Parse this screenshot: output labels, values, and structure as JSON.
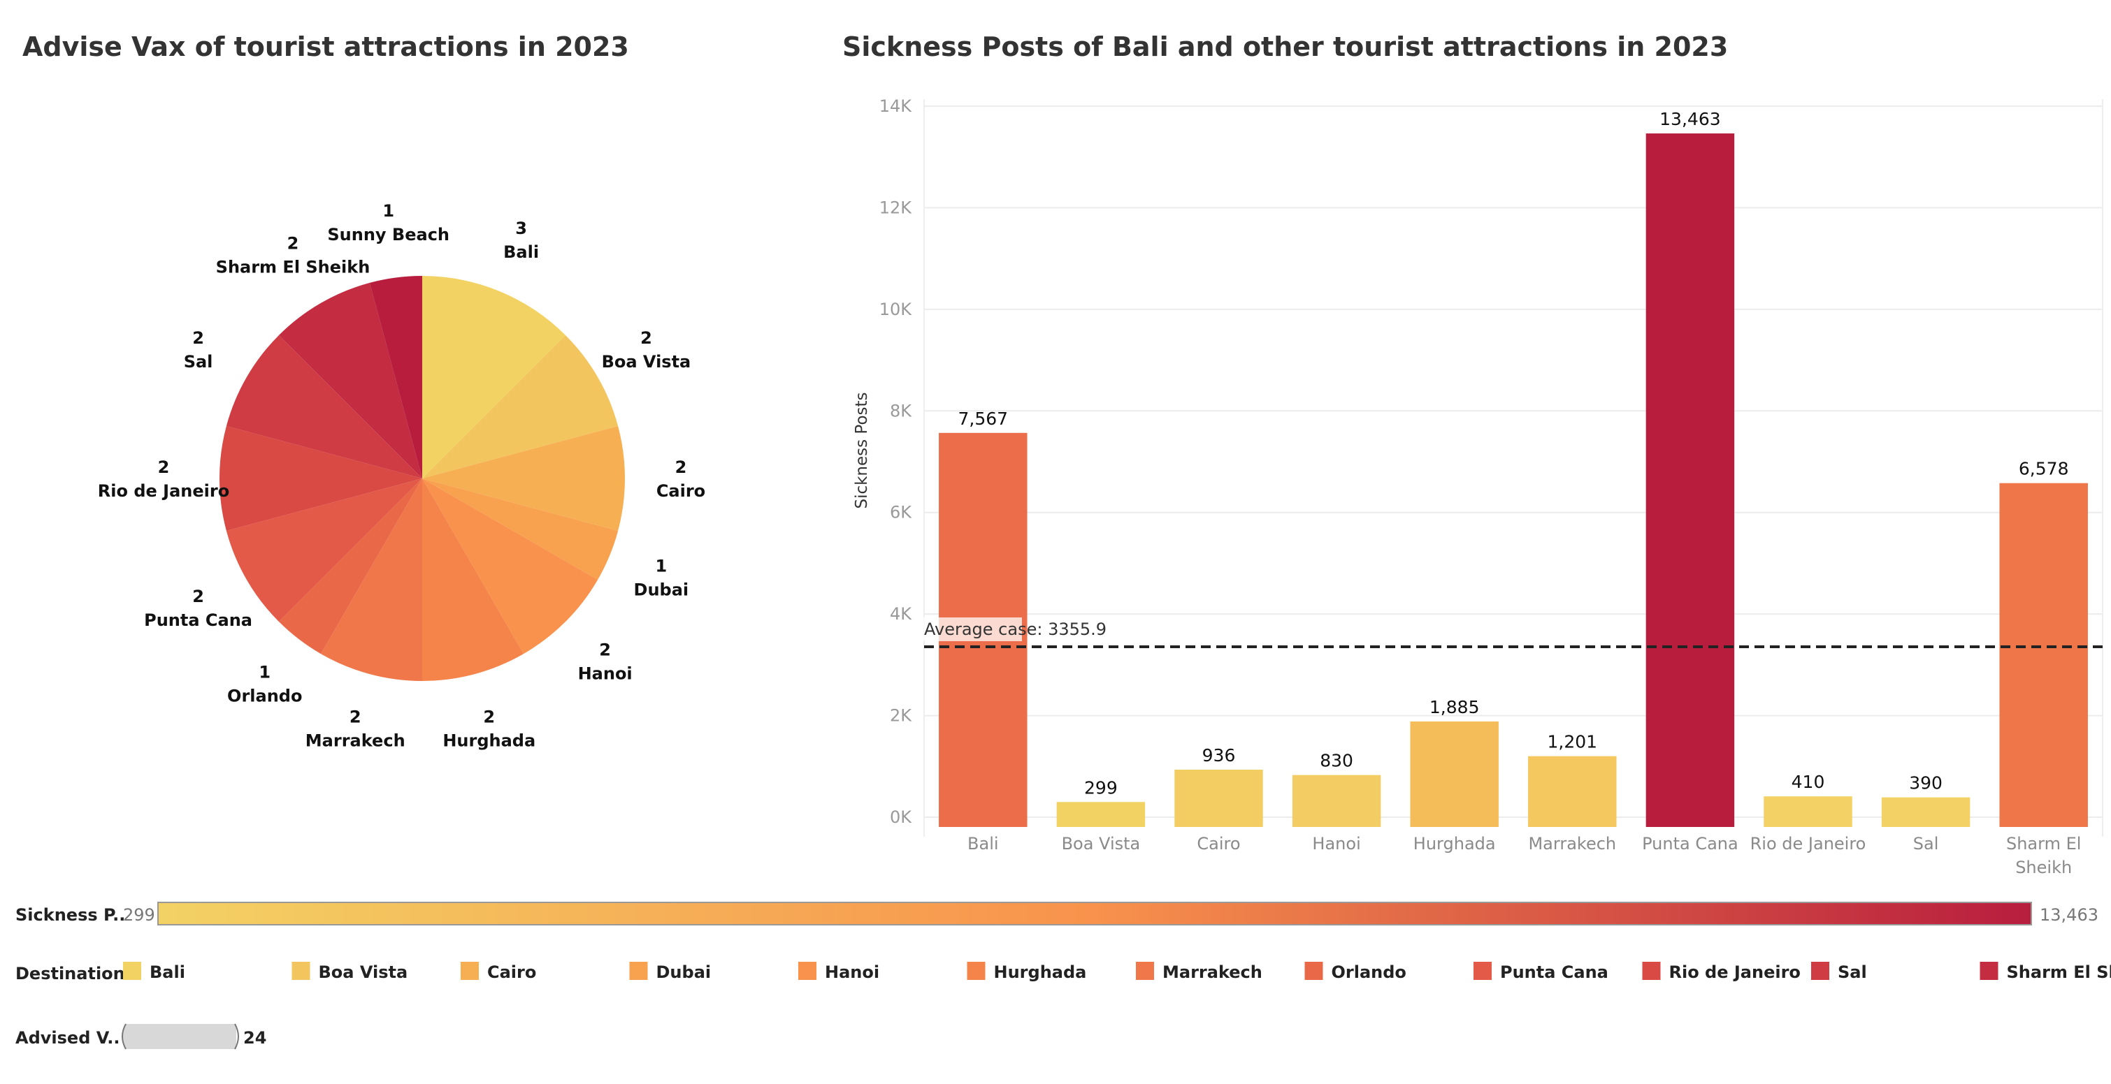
{
  "chart_data": [
    {
      "type": "pie",
      "title": "Advise Vax of tourist attractions in 2023",
      "slices": [
        {
          "label": "Bali",
          "value": 3,
          "color": "#F3D264"
        },
        {
          "label": "Boa Vista",
          "value": 2,
          "color": "#F3C55E"
        },
        {
          "label": "Cairo",
          "value": 2,
          "color": "#F7AF53"
        },
        {
          "label": "Dubai",
          "value": 1,
          "color": "#F8A24F"
        },
        {
          "label": "Hanoi",
          "value": 2,
          "color": "#F8924C"
        },
        {
          "label": "Hurghada",
          "value": 2,
          "color": "#F5844A"
        },
        {
          "label": "Marrakech",
          "value": 2,
          "color": "#F07749"
        },
        {
          "label": "Orlando",
          "value": 1,
          "color": "#E96848"
        },
        {
          "label": "Punta Cana",
          "value": 2,
          "color": "#E35B48"
        },
        {
          "label": "Rio de Janeiro",
          "value": 2,
          "color": "#D94A45"
        },
        {
          "label": "Sal",
          "value": 2,
          "color": "#CF3C44"
        },
        {
          "label": "Sharm El Sheikh",
          "value": 2,
          "color": "#C32C41"
        },
        {
          "label": "Sunny Beach",
          "value": 1,
          "color": "#B81D3E"
        }
      ]
    },
    {
      "type": "bar",
      "title": "Sickness Posts of Bali and other tourist attractions in 2023",
      "ylabel": "Sickness Posts",
      "ylim": [
        0,
        14000
      ],
      "yticks": [
        {
          "value": 0,
          "label": "0K"
        },
        {
          "value": 2000,
          "label": "2K"
        },
        {
          "value": 4000,
          "label": "4K"
        },
        {
          "value": 6000,
          "label": "6K"
        },
        {
          "value": 8000,
          "label": "8K"
        },
        {
          "value": 10000,
          "label": "10K"
        },
        {
          "value": 12000,
          "label": "12K"
        },
        {
          "value": 14000,
          "label": "14K"
        }
      ],
      "bars": [
        {
          "category": "Bali",
          "value": 7567,
          "label": "7,567",
          "color": "#EB6D4A"
        },
        {
          "category": "Boa Vista",
          "value": 299,
          "label": "299",
          "color": "#F3D264"
        },
        {
          "category": "Cairo",
          "value": 936,
          "label": "936",
          "color": "#F3CC62"
        },
        {
          "category": "Hanoi",
          "value": 830,
          "label": "830",
          "color": "#F3CD63"
        },
        {
          "category": "Hurghada",
          "value": 1885,
          "label": "1,885",
          "color": "#F5BC5A"
        },
        {
          "category": "Marrakech",
          "value": 1201,
          "label": "1,201",
          "color": "#F4C75F"
        },
        {
          "category": "Punta Cana",
          "value": 13463,
          "label": "13,463",
          "color": "#B81D3E"
        },
        {
          "category": "Rio de Janeiro",
          "value": 410,
          "label": "410",
          "color": "#F3D164"
        },
        {
          "category": "Sal",
          "value": 390,
          "label": "390",
          "color": "#F3D164"
        },
        {
          "category": "Sharm El\nSheikh",
          "value": 6578,
          "label": "6,578",
          "color": "#EE7649"
        }
      ],
      "reference_line": {
        "value": 3355.9,
        "label": "Average case: 3355.9"
      }
    }
  ],
  "legends": {
    "color_scale": {
      "title": "Sickness P..",
      "min_label": "299",
      "max_label": "13,463",
      "min_color": "#F3D264",
      "mid_color": "#F8924C",
      "max_color": "#B81D3E"
    },
    "destination": {
      "title": "Destination",
      "items": [
        {
          "label": "Bali",
          "color": "#F3D264"
        },
        {
          "label": "Boa Vista",
          "color": "#F3C55E"
        },
        {
          "label": "Cairo",
          "color": "#F7AF53"
        },
        {
          "label": "Dubai",
          "color": "#F8A24F"
        },
        {
          "label": "Hanoi",
          "color": "#F8924C"
        },
        {
          "label": "Hurghada",
          "color": "#F5844A"
        },
        {
          "label": "Marrakech",
          "color": "#F07749"
        },
        {
          "label": "Orlando",
          "color": "#E96848"
        },
        {
          "label": "Punta Cana",
          "color": "#E35B48"
        },
        {
          "label": "Rio de Janeiro",
          "color": "#D94A45"
        },
        {
          "label": "Sal",
          "color": "#CF3C44"
        },
        {
          "label": "Sharm El Sh",
          "color": "#C32C41"
        }
      ]
    },
    "size": {
      "title": "Advised V..",
      "max_label": "24"
    }
  }
}
